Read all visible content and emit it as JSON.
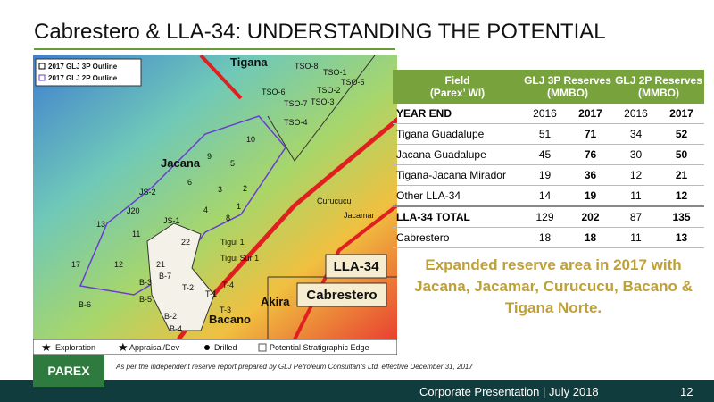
{
  "title": "Cabrestero & LLA-34: UNDERSTANDING THE POTENTIAL",
  "map": {
    "legend": [
      "2017 GLJ 3P Outline",
      "2017 GLJ 2P Outline"
    ],
    "labels": [
      "Tigana",
      "TSO-8",
      "TSO-1",
      "TSO-5",
      "TSO-2",
      "TSO-6",
      "TSO-3",
      "TSO-7",
      "TSO-4",
      "10",
      "9",
      "Jacana",
      "5",
      "6",
      "JS-2",
      "3",
      "2",
      "1",
      "J20",
      "4",
      "8",
      "JS-1",
      "13",
      "11",
      "22",
      "Tigui 1",
      "Tigui Sur 1",
      "17",
      "12",
      "21",
      "B-7",
      "B-3",
      "T-2",
      "T-4",
      "T-1",
      "B-5",
      "B-6",
      "T-3",
      "B-2",
      "Bacano",
      "B-4",
      "Akira",
      "Curucucu",
      "Jacamar"
    ],
    "regions": [
      "LLA-34",
      "Cabrestero"
    ],
    "bottom_legend": [
      "Exploration",
      "Appraisal/Dev",
      "Drilled",
      "Potential Stratigraphic Edge"
    ]
  },
  "table": {
    "header": [
      [
        "Field",
        "(Parex’ WI)"
      ],
      [
        "GLJ 3P Reserves",
        "(MMBO)"
      ],
      [
        "GLJ 2P Reserves",
        "(MMBO)"
      ]
    ],
    "rows": [
      [
        "YEAR END",
        "2016",
        "2017",
        "2016",
        "2017"
      ],
      [
        "Tigana Guadalupe",
        "51",
        "71",
        "34",
        "52"
      ],
      [
        "Jacana Guadalupe",
        "45",
        "76",
        "30",
        "50"
      ],
      [
        "Tigana-Jacana Mirador",
        "19",
        "36",
        "12",
        "21"
      ],
      [
        "Other LLA-34",
        "14",
        "19",
        "11",
        "12"
      ],
      [
        "LLA-34 TOTAL",
        "129",
        "202",
        "87",
        "135"
      ],
      [
        "Cabrestero",
        "18",
        "18",
        "11",
        "13"
      ]
    ]
  },
  "callout": "Expanded reserve area in 2017 with Jacana, Jacamar, Curucucu, Bacano & Tigana Norte.",
  "footnote": "As per the independent reserve report prepared by GLJ Petroleum Consultants Ltd. effective  December 31, 2017",
  "footer": {
    "logo": "PAREX",
    "presentation": "Corporate Presentation  |  July 2018",
    "page": "12"
  }
}
